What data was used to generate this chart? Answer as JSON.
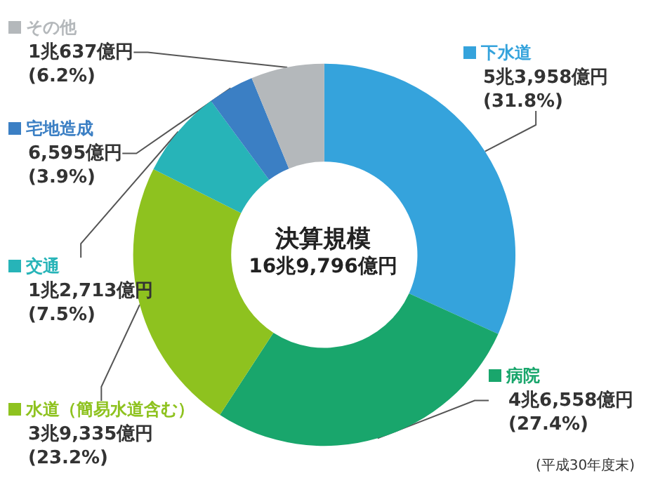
{
  "chart_data": {
    "type": "donut",
    "title": "決算規模",
    "subtitle": "16兆9,796億円",
    "categories": [
      "下水道",
      "病院",
      "水道（簡易水道含む）",
      "交通",
      "宅地造成",
      "その他"
    ],
    "values": [
      31.8,
      27.4,
      23.2,
      7.5,
      3.9,
      6.2
    ],
    "colors": [
      "#35a3dc",
      "#19a66c",
      "#8ec21f",
      "#27b4b8",
      "#3b7fc4",
      "#b4b8bb"
    ],
    "value_labels": [
      "5兆3,958億円\n(31.8%)",
      "4兆6,558億円\n(27.4%)",
      "3兆9,335億円\n(23.2%)",
      "1兆2,713億円\n(7.5%)",
      "6,595億円\n(3.9%)",
      "1兆637億円\n(6.2%)"
    ],
    "annotations": [
      "(平成30年度末)"
    ],
    "legend": "left"
  }
}
